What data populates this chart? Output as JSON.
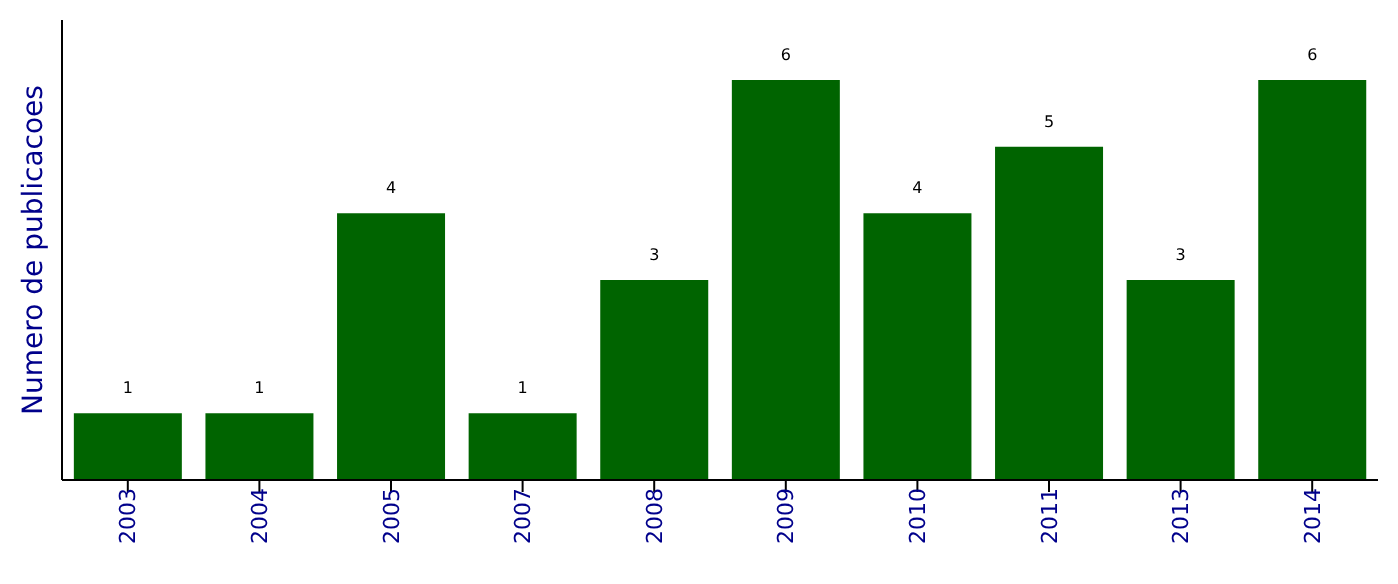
{
  "chart_data": {
    "type": "bar",
    "ylabel": "Numero de publicacoes",
    "categories": [
      "2003",
      "2004",
      "2005",
      "2007",
      "2008",
      "2009",
      "2010",
      "2011",
      "2013",
      "2014"
    ],
    "values": [
      1,
      1,
      4,
      1,
      3,
      6,
      4,
      5,
      3,
      6
    ],
    "color": "#006400",
    "ylim": [
      0,
      6.9
    ],
    "data_labels": true,
    "tick_labels": "x"
  }
}
